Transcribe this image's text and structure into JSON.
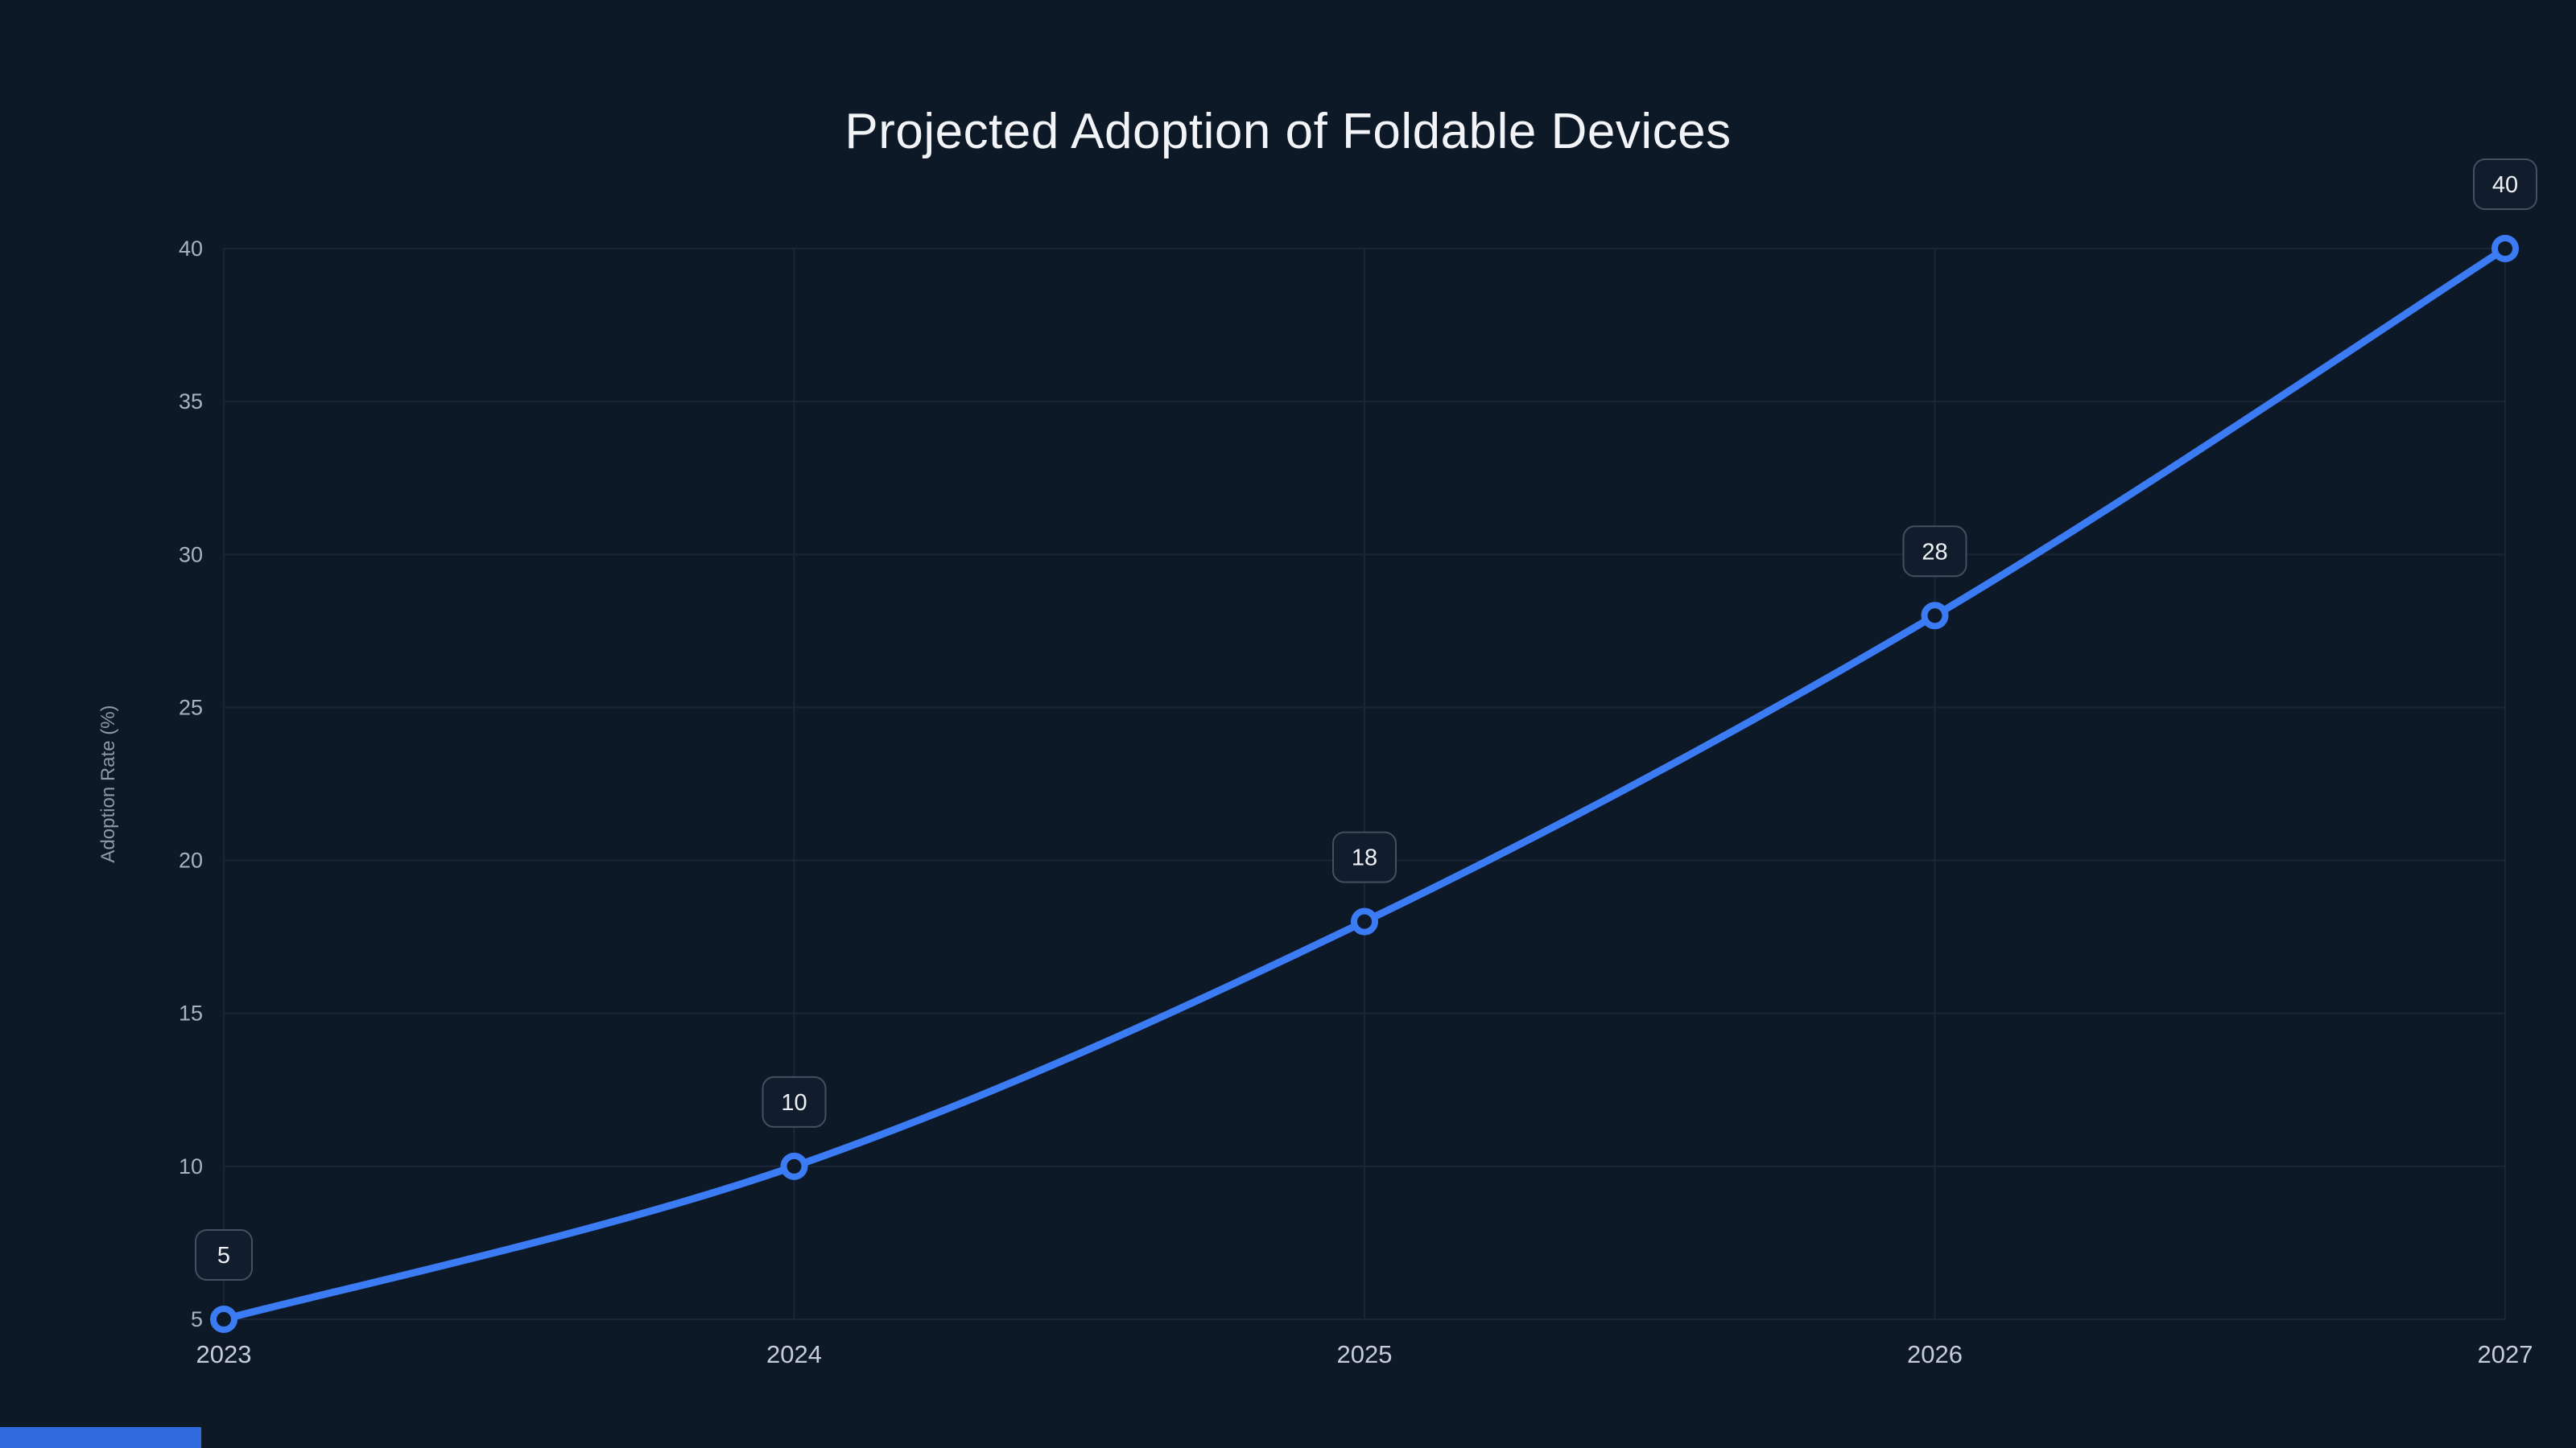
{
  "title": "Projected Adoption of Foldable Devices",
  "chart_data": {
    "type": "line",
    "x": [
      "2023",
      "2024",
      "2025",
      "2026",
      "2027"
    ],
    "series": [
      {
        "name": "Adoption Rate",
        "values": [
          5,
          10,
          18,
          28,
          40
        ]
      }
    ],
    "data_labels": [
      "5",
      "10",
      "18",
      "28",
      "40"
    ],
    "title": "Projected Adoption of Foldable Devices",
    "xlabel": "",
    "ylabel": "Adoption Rate (%)",
    "yticks": [
      5,
      10,
      15,
      20,
      25,
      30,
      35,
      40
    ],
    "ylim": [
      5,
      40
    ],
    "grid": true,
    "legend": "none",
    "smooth": true,
    "colors": {
      "background": "#0e1928",
      "line": "#3b7cf5",
      "marker_fill": "#0e1928",
      "grid": "#1b2536",
      "tick_text": "#a9b3bf",
      "tick_text_x": "#c6cdd6",
      "axis_title_text": "#8d97a5",
      "label_box_bg": "#111c2c",
      "label_box_border": "#454f5e",
      "label_text": "#eef1f5",
      "title_text": "#f2f4f7",
      "accent": "#2f6bdf"
    }
  }
}
